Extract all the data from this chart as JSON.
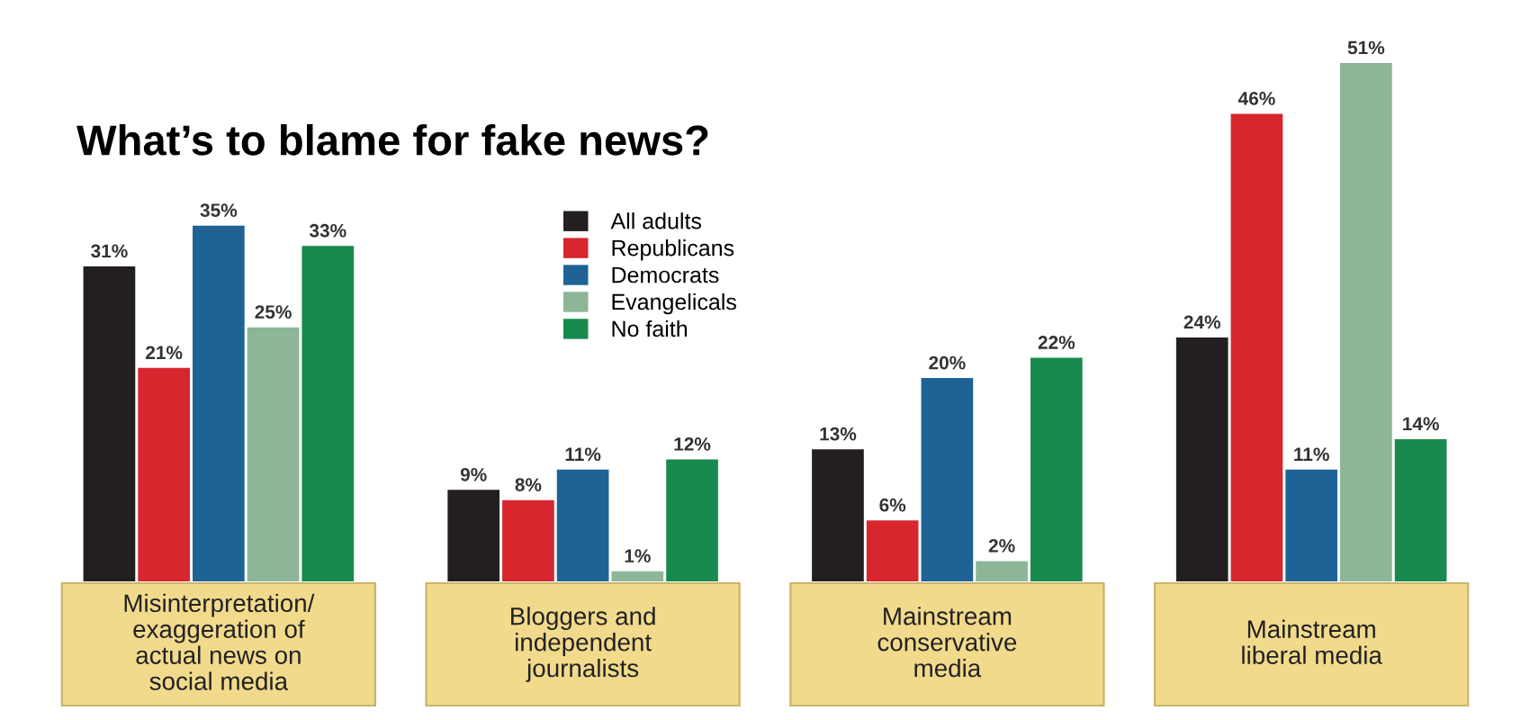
{
  "chart_data": {
    "type": "bar",
    "title": "What’s to blame for fake news?",
    "categories": [
      "Misinterpretation/\nexaggeration of\nactual news on\nsocial media",
      "Bloggers and\nindependent\njournalists",
      "Mainstream\nconservative\nmedia",
      "Mainstream\nliberal media"
    ],
    "series": [
      {
        "name": "All adults",
        "color": "#231f20",
        "values": [
          31,
          9,
          13,
          24
        ],
        "value_labels": [
          "31%",
          "9%",
          "13%",
          "24%"
        ]
      },
      {
        "name": "Republicans",
        "color": "#d7262e",
        "values": [
          21,
          8,
          6,
          46
        ],
        "value_labels": [
          "21%",
          "8%",
          "6%",
          "46%"
        ]
      },
      {
        "name": "Democrats",
        "color": "#1f6396",
        "values": [
          35,
          11,
          20,
          11
        ],
        "value_labels": [
          "35%",
          "11%",
          "20%",
          "11%"
        ]
      },
      {
        "name": "Evangelicals",
        "color": "#8cb697",
        "values": [
          25,
          1,
          2,
          51
        ],
        "value_labels": [
          "25%",
          "1%",
          "2%",
          "51%"
        ]
      },
      {
        "name": "No faith",
        "color": "#188a4e",
        "values": [
          33,
          12,
          22,
          14
        ],
        "value_labels": [
          "33%",
          "12%",
          "22%",
          "14%"
        ]
      }
    ],
    "legend": "top"
  }
}
